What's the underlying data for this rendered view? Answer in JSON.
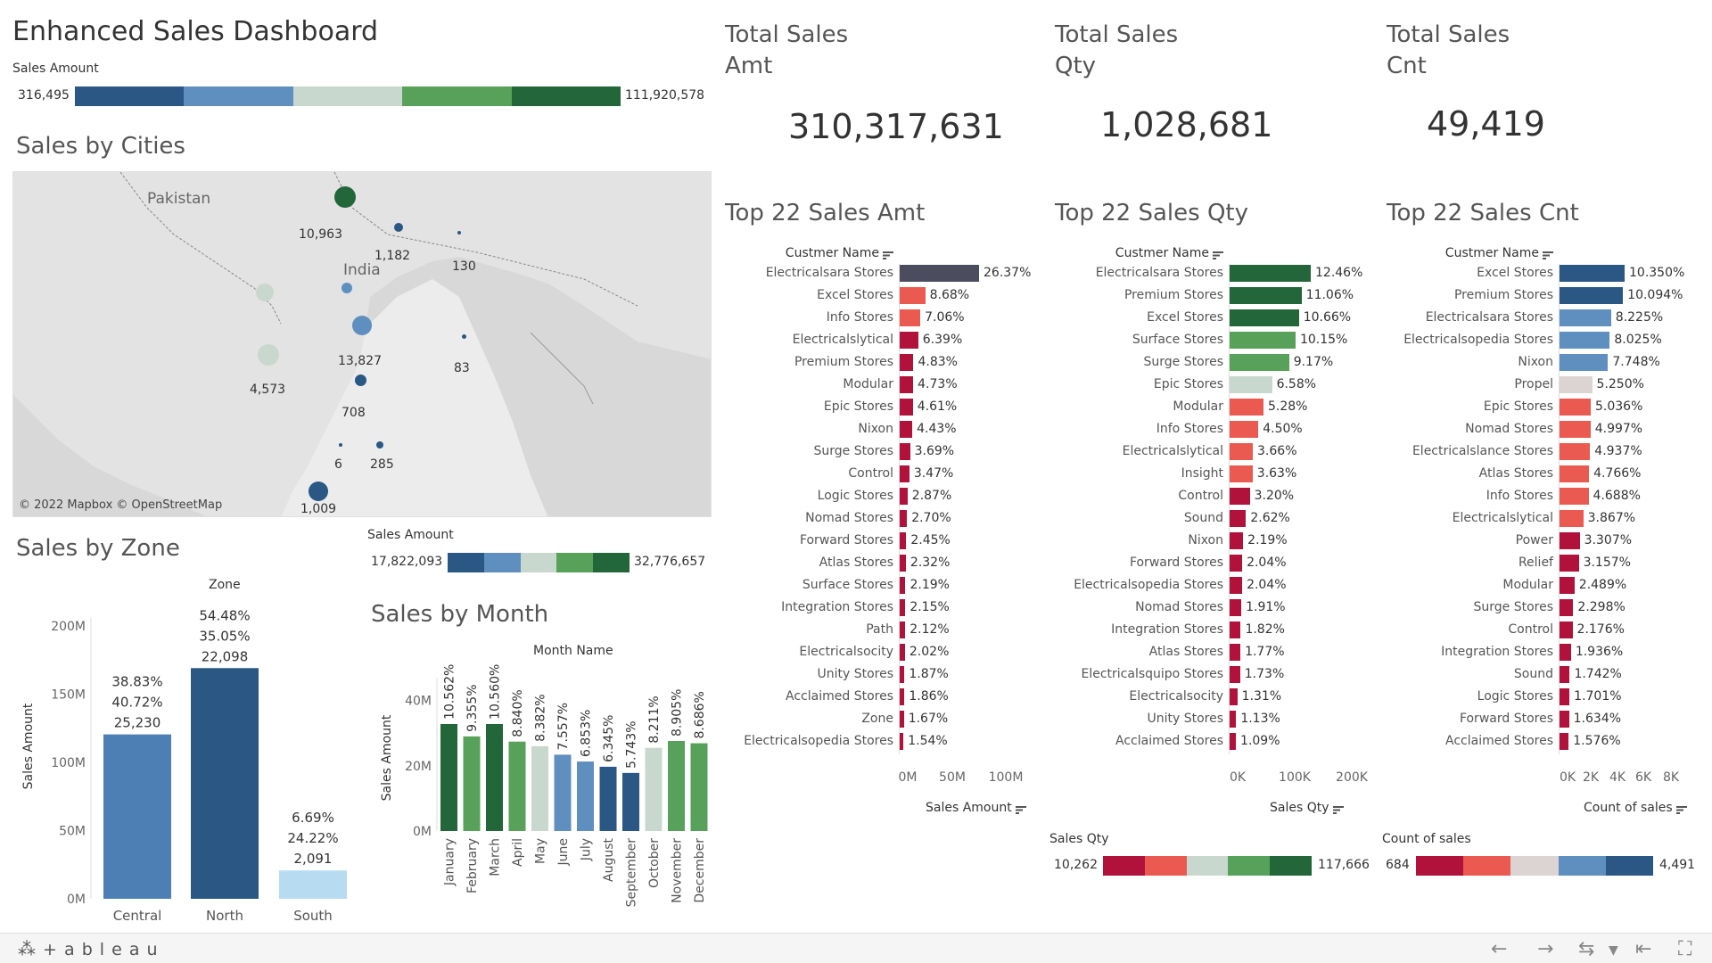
{
  "dashboard": {
    "title": "Enhanced Sales Dashboard"
  },
  "sales_amount_legend": {
    "label": "Sales Amount",
    "min": "316,495",
    "max": "111,920,578",
    "colors": [
      "#2a5783",
      "#5f8fbf",
      "#c9d8cf",
      "#58a15a",
      "#236639"
    ]
  },
  "cities": {
    "title": "Sales by Cities",
    "attribution": "© 2022 Mapbox  © OpenStreetMap",
    "places": [
      {
        "name": "Pakistan"
      },
      {
        "name": "India"
      }
    ],
    "points": [
      {
        "label": "10,963",
        "color": "#236639"
      },
      {
        "label": "1,182",
        "color": "#2a5783"
      },
      {
        "label": "130",
        "color": "#2a5783"
      },
      {
        "label": "",
        "color": "#c9d8cf"
      },
      {
        "label": "",
        "color": "#5f8fbf"
      },
      {
        "label": "13,827",
        "color": "#5f8fbf"
      },
      {
        "label": "83",
        "color": "#2a5783"
      },
      {
        "label": "4,573",
        "color": "#c9d8cf"
      },
      {
        "label": "708",
        "color": "#2a5783"
      },
      {
        "label": "6",
        "color": "#2a5783"
      },
      {
        "label": "285",
        "color": "#2a5783"
      },
      {
        "label": "1,009",
        "color": "#2a5783"
      }
    ]
  },
  "zone": {
    "title": "Sales by Zone",
    "header": "Zone",
    "y_axis_label": "Sales Amount",
    "y_ticks": [
      "200M",
      "150M",
      "100M",
      "50M",
      "0M"
    ]
  },
  "zone_legend": {
    "label": "Sales Amount",
    "min": "17,822,093",
    "max": "32,776,657",
    "colors": [
      "#2a5783",
      "#5f8fbf",
      "#c9d8cf",
      "#58a15a",
      "#236639"
    ]
  },
  "month": {
    "title": "Sales by Month",
    "header": "Month Name",
    "y_axis_label": "Sales Amount",
    "y_ticks": [
      "40M",
      "20M",
      "0M"
    ]
  },
  "kpis": [
    {
      "title": "Total Sales Amt",
      "value": "310,317,631"
    },
    {
      "title": "Total Sales Qty",
      "value": "1,028,681"
    },
    {
      "title": "Total Sales Cnt",
      "value": "49,419"
    }
  ],
  "top_amt": {
    "title": "Top 22 Sales Amt",
    "header": "Custmer Name",
    "measure": "Sales Amount",
    "ticks": [
      "0M",
      "50M",
      "100M"
    ]
  },
  "top_qty": {
    "title": "Top 22 Sales Qty",
    "header": "Custmer Name",
    "measure": "Sales Qty",
    "ticks": [
      "0K",
      "100K",
      "200K"
    ],
    "legend_label": "Sales Qty",
    "legend_min": "10,262",
    "legend_max": "117,666",
    "legend_colors": [
      "#b0123b",
      "#eb5a50",
      "#c9d8cf",
      "#58a15a",
      "#236639"
    ]
  },
  "top_cnt": {
    "title": "Top 22 Sales Cnt",
    "header": "Custmer Name",
    "measure": "Count of sales",
    "ticks": [
      "0K",
      "2K",
      "4K",
      "6K",
      "8K"
    ],
    "legend_label": "Count of sales",
    "legend_min": "684",
    "legend_max": "4,491",
    "legend_colors": [
      "#b0123b",
      "#eb5a50",
      "#dcd4d2",
      "#5f8fbf",
      "#2a5783"
    ]
  },
  "footer": {
    "brand": "+ a b l e a u"
  },
  "chart_data": [
    {
      "type": "bar",
      "title": "Sales by Zone",
      "ylabel": "Sales Amount",
      "ylim": [
        0,
        200000000
      ],
      "categories": [
        "Central",
        "North",
        "South"
      ],
      "values": [
        120500000,
        169100000,
        20800000
      ],
      "colors": [
        "#4d7fb4",
        "#2a5783",
        "#b7dcf2"
      ],
      "labels": [
        [
          "38.83%",
          "40.72%",
          "25,230"
        ],
        [
          "54.48%",
          "35.05%",
          "22,098"
        ],
        [
          "6.69%",
          "24.22%",
          "2,091"
        ]
      ]
    },
    {
      "type": "bar",
      "title": "Sales by Month",
      "ylabel": "Sales Amount",
      "ylim": [
        0,
        47000000
      ],
      "categories": [
        "January",
        "February",
        "March",
        "April",
        "May",
        "June",
        "July",
        "August",
        "September",
        "October",
        "November",
        "December"
      ],
      "values": [
        32800000,
        29000000,
        32800000,
        27400000,
        26000000,
        23400000,
        21300000,
        19700000,
        17800000,
        25500000,
        27600000,
        26900000
      ],
      "colors": [
        "#236639",
        "#58a15a",
        "#236639",
        "#58a15a",
        "#c9d8cf",
        "#5f8fbf",
        "#5f8fbf",
        "#2a5783",
        "#2a5783",
        "#c9d8cf",
        "#58a15a",
        "#58a15a"
      ],
      "labels": [
        "10.562%",
        "9.355%",
        "10.560%",
        "8.840%",
        "8.382%",
        "7.557%",
        "6.853%",
        "6.345%",
        "5.743%",
        "8.211%",
        "8.905%",
        "8.686%"
      ]
    },
    {
      "type": "bar",
      "title": "Top 22 Sales Amt",
      "xlabel": "Sales Amount",
      "xlim": [
        0,
        115000000
      ],
      "categories": [
        "Electricalsara Stores",
        "Excel Stores",
        "Info Stores",
        "Electricalslytical",
        "Premium Stores",
        "Modular",
        "Epic Stores",
        "Nixon",
        "Surge Stores",
        "Control",
        "Logic Stores",
        "Nomad Stores",
        "Forward Stores",
        "Atlas Stores",
        "Surface Stores",
        "Integration Stores",
        "Path",
        "Electricalsocity",
        "Unity Stores",
        "Acclaimed Stores",
        "Zone",
        "Electricalsopedia Stores"
      ],
      "values": [
        26.37,
        8.68,
        7.06,
        6.39,
        4.83,
        4.73,
        4.61,
        4.43,
        3.69,
        3.47,
        2.87,
        2.7,
        2.45,
        2.32,
        2.19,
        2.15,
        2.12,
        2.02,
        1.87,
        1.86,
        1.67,
        1.54
      ],
      "labels": [
        "26.37%",
        "8.68%",
        "7.06%",
        "6.39%",
        "4.83%",
        "4.73%",
        "4.61%",
        "4.43%",
        "3.69%",
        "3.47%",
        "2.87%",
        "2.70%",
        "2.45%",
        "2.32%",
        "2.19%",
        "2.15%",
        "2.12%",
        "2.02%",
        "1.87%",
        "1.86%",
        "1.67%",
        "1.54%"
      ],
      "colors": [
        "#4b4d5e",
        "#eb5a50",
        "#eb5a50",
        "#b0123b",
        "#b0123b",
        "#b0123b",
        "#b0123b",
        "#b0123b",
        "#b0123b",
        "#b0123b",
        "#b0123b",
        "#b0123b",
        "#b0123b",
        "#b0123b",
        "#b0123b",
        "#b0123b",
        "#b0123b",
        "#b0123b",
        "#b0123b",
        "#b0123b",
        "#b0123b",
        "#b0123b"
      ]
    },
    {
      "type": "bar",
      "title": "Top 22 Sales Qty",
      "xlabel": "Sales Qty",
      "xlim": [
        0,
        220000
      ],
      "categories": [
        "Electricalsara Stores",
        "Premium Stores",
        "Excel Stores",
        "Surface Stores",
        "Surge Stores",
        "Epic Stores",
        "Modular",
        "Info Stores",
        "Electricalslytical",
        "Insight",
        "Control",
        "Sound",
        "Nixon",
        "Forward Stores",
        "Electricalsopedia Stores",
        "Nomad Stores",
        "Integration Stores",
        "Atlas Stores",
        "Electricalsquipo Stores",
        "Electricalsocity",
        "Unity Stores",
        "Acclaimed Stores"
      ],
      "values": [
        12.46,
        11.06,
        10.66,
        10.15,
        9.17,
        6.58,
        5.28,
        4.5,
        3.66,
        3.63,
        3.2,
        2.62,
        2.19,
        2.04,
        2.04,
        1.91,
        1.82,
        1.77,
        1.73,
        1.31,
        1.13,
        1.09
      ],
      "labels": [
        "12.46%",
        "11.06%",
        "10.66%",
        "10.15%",
        "9.17%",
        "6.58%",
        "5.28%",
        "4.50%",
        "3.66%",
        "3.63%",
        "3.20%",
        "2.62%",
        "2.19%",
        "2.04%",
        "2.04%",
        "1.91%",
        "1.82%",
        "1.77%",
        "1.73%",
        "1.31%",
        "1.13%",
        "1.09%"
      ],
      "colors": [
        "#236639",
        "#236639",
        "#236639",
        "#58a15a",
        "#58a15a",
        "#c9d8cf",
        "#eb5a50",
        "#eb5a50",
        "#eb5a50",
        "#eb5a50",
        "#b0123b",
        "#b0123b",
        "#b0123b",
        "#b0123b",
        "#b0123b",
        "#b0123b",
        "#b0123b",
        "#b0123b",
        "#b0123b",
        "#b0123b",
        "#b0123b",
        "#b0123b"
      ]
    },
    {
      "type": "bar",
      "title": "Top 22 Sales Cnt",
      "xlabel": "Count of sales",
      "xlim": [
        0,
        8800
      ],
      "categories": [
        "Excel Stores",
        "Premium Stores",
        "Electricalsara Stores",
        "Electricalsopedia Stores",
        "Nixon",
        "Propel",
        "Epic Stores",
        "Nomad Stores",
        "Electricalslance Stores",
        "Atlas Stores",
        "Info Stores",
        "Electricalslytical",
        "Power",
        "Relief",
        "Modular",
        "Surge Stores",
        "Control",
        "Integration Stores",
        "Sound",
        "Logic Stores",
        "Forward Stores",
        "Acclaimed Stores"
      ],
      "values": [
        10.35,
        10.094,
        8.225,
        8.025,
        7.748,
        5.25,
        5.036,
        4.997,
        4.937,
        4.766,
        4.688,
        3.867,
        3.307,
        3.157,
        2.489,
        2.298,
        2.176,
        1.936,
        1.742,
        1.701,
        1.634,
        1.576
      ],
      "labels": [
        "10.350%",
        "10.094%",
        "8.225%",
        "8.025%",
        "7.748%",
        "5.250%",
        "5.036%",
        "4.997%",
        "4.937%",
        "4.766%",
        "4.688%",
        "3.867%",
        "3.307%",
        "3.157%",
        "2.489%",
        "2.298%",
        "2.176%",
        "1.936%",
        "1.742%",
        "1.701%",
        "1.634%",
        "1.576%"
      ],
      "colors": [
        "#2a5783",
        "#2a5783",
        "#5f8fbf",
        "#5f8fbf",
        "#5f8fbf",
        "#dcd4d2",
        "#eb5a50",
        "#eb5a50",
        "#eb5a50",
        "#eb5a50",
        "#eb5a50",
        "#eb5a50",
        "#b0123b",
        "#b0123b",
        "#b0123b",
        "#b0123b",
        "#b0123b",
        "#b0123b",
        "#b0123b",
        "#b0123b",
        "#b0123b",
        "#b0123b"
      ]
    }
  ]
}
